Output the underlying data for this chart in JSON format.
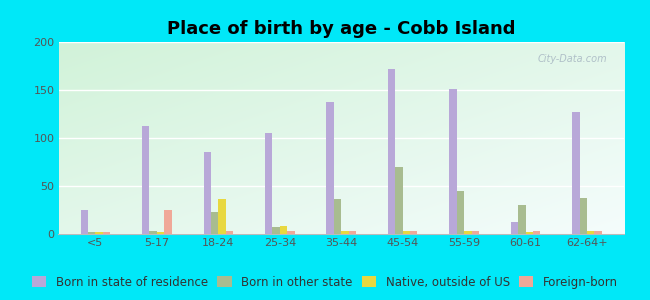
{
  "title": "Place of birth by age - Cobb Island",
  "categories": [
    "<5",
    "5-17",
    "18-24",
    "25-34",
    "35-44",
    "45-54",
    "55-59",
    "60-61",
    "62-64+"
  ],
  "series": {
    "Born in state of residence": [
      25,
      112,
      85,
      105,
      137,
      172,
      151,
      13,
      127
    ],
    "Born in other state": [
      2,
      3,
      23,
      7,
      36,
      70,
      45,
      30,
      38
    ],
    "Native, outside of US": [
      2,
      2,
      36,
      8,
      3,
      3,
      3,
      2,
      3
    ],
    "Foreign-born": [
      2,
      25,
      3,
      3,
      3,
      3,
      3,
      3,
      3
    ]
  },
  "colors": {
    "Born in state of residence": "#b8a8d8",
    "Born in other state": "#a8bc90",
    "Native, outside of US": "#e8d840",
    "Foreign-born": "#f0a898"
  },
  "ylim": [
    0,
    200
  ],
  "yticks": [
    0,
    50,
    100,
    150,
    200
  ],
  "outer_bg": "#00e8f8",
  "bar_width": 0.12,
  "title_fontsize": 13,
  "tick_fontsize": 8,
  "legend_fontsize": 8.5
}
